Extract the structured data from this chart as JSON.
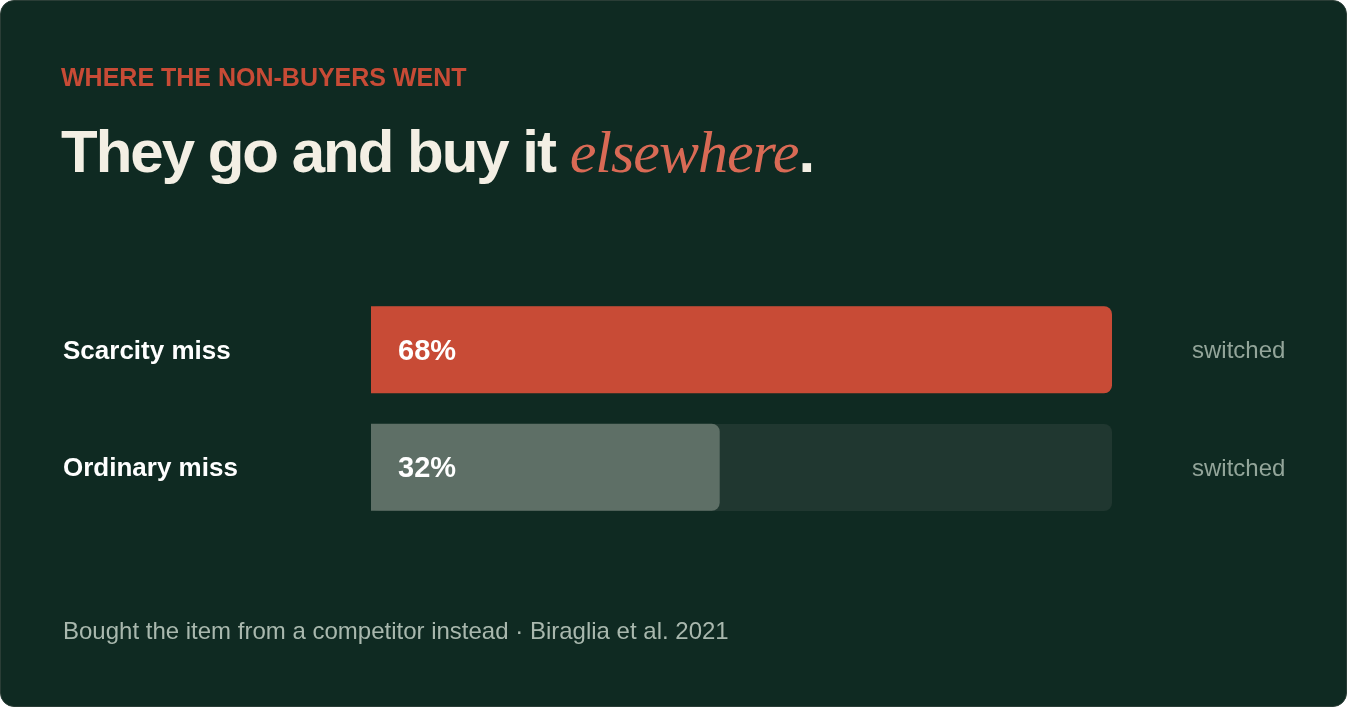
{
  "chart_data": {
    "type": "bar",
    "orientation": "horizontal",
    "subtitle": "WHERE THE NON-BUYERS WENT",
    "title": "They go and buy it elsewhere.",
    "categories": [
      "Scarcity miss",
      "Ordinary miss"
    ],
    "values": [
      68,
      32
    ],
    "value_labels": [
      "68%",
      "32%"
    ],
    "colors": [
      "#c84b36",
      "#5e6f66"
    ],
    "xlim": [
      0,
      68
    ],
    "legend": false,
    "annotations": [
      "switched",
      "switched",
      "Bought the item from a competitor instead · Biraglia et al. 2021"
    ]
  }
}
